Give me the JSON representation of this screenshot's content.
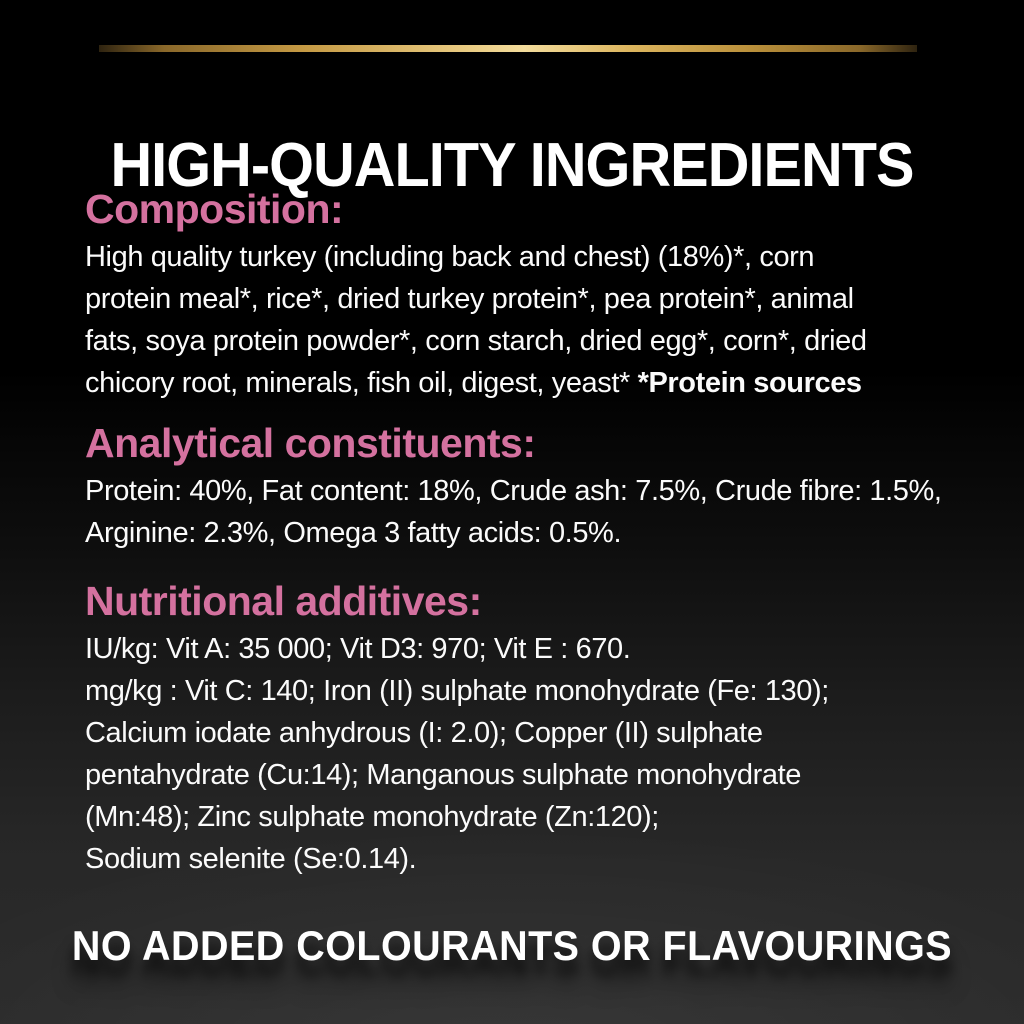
{
  "page": {
    "title": "HIGH-QUALITY INGREDIENTS",
    "footer": "NO ADDED COLOURANTS OR FLAVOURINGS"
  },
  "colors": {
    "background_top": "#000000",
    "background_bottom": "#2b2b2b",
    "heading_accent_pink": "#d4719f",
    "body_text": "#fbfbfb",
    "gold_divider_dark": "#8a682a",
    "gold_divider_light": "#f3dc9c"
  },
  "sections": [
    {
      "heading": "Composition:",
      "body": "High quality turkey (including back and chest) (18%)*, corn\nprotein meal*, rice*, dried turkey protein*, pea protein*, animal\nfats, soya protein powder*, corn starch, dried egg*, corn*, dried\nchicory root, minerals, fish oil, digest, yeast* ",
      "bold_suffix": "*Protein sources"
    },
    {
      "heading": "Analytical constituents:",
      "body": "Protein: 40%, Fat content: 18%, Crude ash: 7.5%, Crude fibre: 1.5%,\nArginine: 2.3%, Omega 3 fatty acids: 0.5%."
    },
    {
      "heading": "Nutritional additives:",
      "body": "IU/kg: Vit A: 35 000; Vit D3: 970; Vit E : 670.\nmg/kg : Vit C: 140; Iron (II) sulphate monohydrate (Fe: 130);\nCalcium iodate anhydrous (I: 2.0); Copper (II) sulphate\npentahydrate (Cu:14); Manganous sulphate monohydrate\n(Mn:48); Zinc sulphate monohydrate (Zn:120);\nSodium selenite (Se:0.14)."
    }
  ]
}
